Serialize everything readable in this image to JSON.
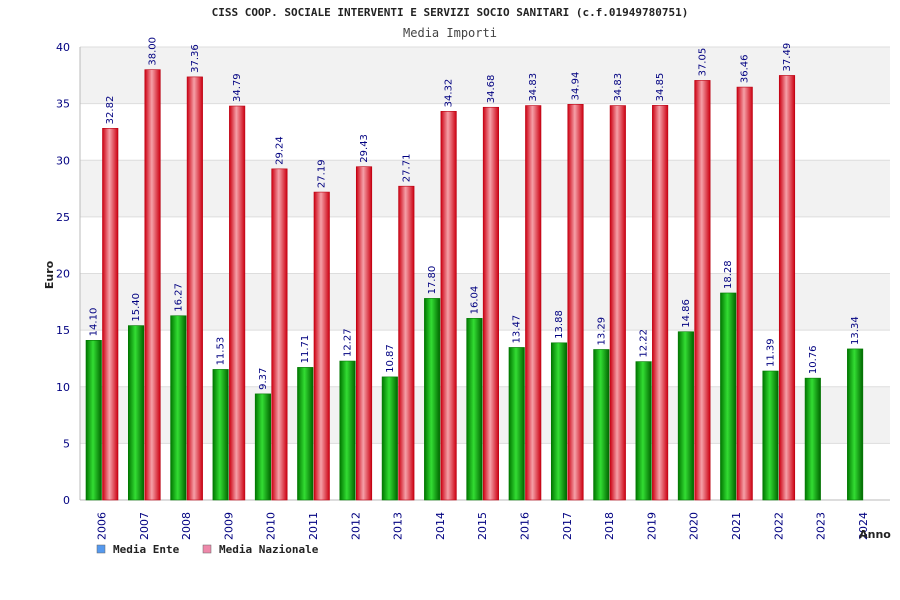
{
  "chart_data": {
    "type": "bar",
    "title": "CISS COOP. SOCIALE INTERVENTI E SERVIZI SOCIO SANITARI (c.f.01949780751)",
    "subtitle": "Media Importi",
    "ylabel": "Euro",
    "xlabel": "Anno",
    "ylim": [
      0,
      40
    ],
    "yticks": [
      0,
      5,
      10,
      15,
      20,
      25,
      30,
      35,
      40
    ],
    "categories": [
      "2006",
      "2007",
      "2008",
      "2009",
      "2010",
      "2011",
      "2012",
      "2013",
      "2014",
      "2015",
      "2016",
      "2017",
      "2018",
      "2019",
      "2020",
      "2021",
      "2022",
      "2023",
      "2024"
    ],
    "series": [
      {
        "name": "Media Ente",
        "color": "#00aa00",
        "legend_color": "#5599ee",
        "values": [
          14.1,
          15.4,
          16.27,
          11.53,
          9.37,
          11.71,
          12.27,
          10.87,
          17.8,
          16.04,
          13.47,
          13.88,
          13.29,
          12.22,
          14.86,
          18.28,
          11.39,
          10.76,
          13.34
        ],
        "labels": [
          "14.10",
          "15.40",
          "16.27",
          "11.53",
          "9.37",
          "11.71",
          "12.27",
          "10.87",
          "17.80",
          "16.04",
          "13.47",
          "13.88",
          "13.29",
          "12.22",
          "14.86",
          "18.28",
          "11.39",
          "10.76",
          "13.34"
        ]
      },
      {
        "name": "Media Nazionale",
        "color": "#ee2233",
        "legend_color": "#ee88aa",
        "values": [
          32.82,
          38.0,
          37.36,
          34.79,
          29.24,
          27.19,
          29.43,
          27.71,
          34.32,
          34.68,
          34.83,
          34.94,
          34.83,
          34.85,
          37.05,
          36.46,
          37.49,
          null,
          null
        ],
        "labels": [
          "32.82",
          "38.00",
          "37.36",
          "34.79",
          "29.24",
          "27.19",
          "29.43",
          "27.71",
          "34.32",
          "34.68",
          "34.83",
          "34.94",
          "34.83",
          "34.85",
          "37.05",
          "36.46",
          "37.49",
          "",
          ""
        ]
      }
    ],
    "grid": true,
    "legend_position": "bottom-left"
  }
}
